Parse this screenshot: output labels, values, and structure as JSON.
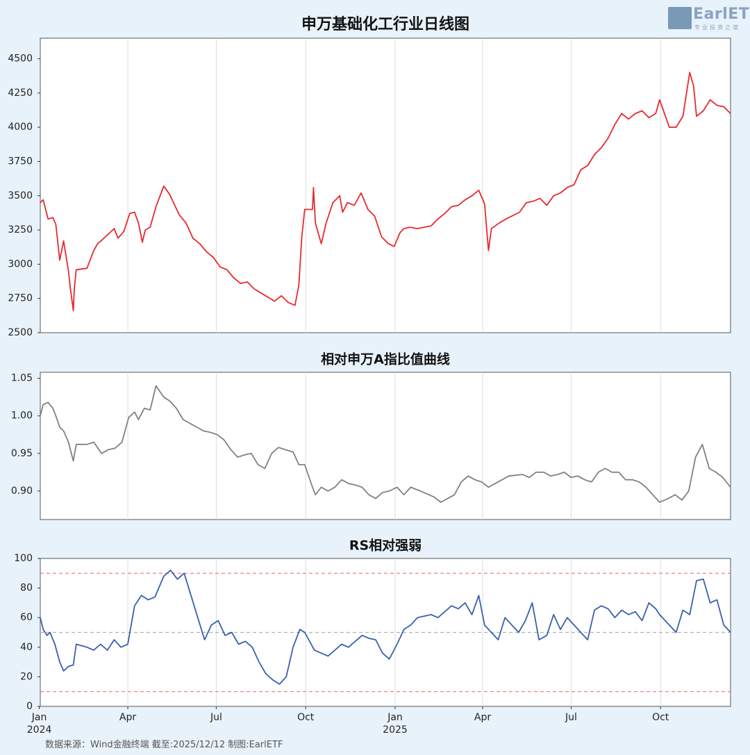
{
  "logo": {
    "text": "EarlETF",
    "sub": "专业投资之道"
  },
  "footer": "数据来源：Wind金融终端 截至:2025/12/12 制图:EarlETF",
  "chart_data": [
    {
      "type": "line",
      "title": "申万基础化工行业日线图",
      "ylim": [
        2500,
        4650
      ],
      "yticks": [
        2500,
        2750,
        3000,
        3250,
        3500,
        3750,
        4000,
        4250,
        4500
      ],
      "color": "#e8282d",
      "x_range": [
        "2024-01-02",
        "2025-12-12"
      ],
      "series": [
        {
          "x": [
            "2024-01-02",
            "2024-01-05",
            "2024-01-10",
            "2024-01-15",
            "2024-01-18",
            "2024-01-22",
            "2024-01-24",
            "2024-01-26",
            "2024-01-31",
            "2024-02-02",
            "2024-02-05",
            "2024-02-06",
            "2024-02-08",
            "2024-02-19",
            "2024-02-26",
            "2024-03-01",
            "2024-03-06",
            "2024-03-12",
            "2024-03-18",
            "2024-03-22",
            "2024-03-28",
            "2024-04-03",
            "2024-04-08",
            "2024-04-12",
            "2024-04-16",
            "2024-04-19",
            "2024-04-24",
            "2024-04-30",
            "2024-05-08",
            "2024-05-14",
            "2024-05-20",
            "2024-05-24",
            "2024-05-31",
            "2024-06-07",
            "2024-06-14",
            "2024-06-21",
            "2024-06-28",
            "2024-07-05",
            "2024-07-12",
            "2024-07-19",
            "2024-07-26",
            "2024-08-02",
            "2024-08-09",
            "2024-08-16",
            "2024-08-23",
            "2024-08-30",
            "2024-09-06",
            "2024-09-13",
            "2024-09-20",
            "2024-09-24",
            "2024-09-27",
            "2024-09-30",
            "2024-10-08",
            "2024-10-09",
            "2024-10-11",
            "2024-10-17",
            "2024-10-22",
            "2024-10-29",
            "2024-11-05",
            "2024-11-08",
            "2024-11-13",
            "2024-11-20",
            "2024-11-27",
            "2024-12-04",
            "2024-12-11",
            "2024-12-18",
            "2024-12-25",
            "2024-12-31",
            "2025-01-06",
            "2025-01-10",
            "2025-01-16",
            "2025-01-24",
            "2025-02-07",
            "2025-02-14",
            "2025-02-21",
            "2025-02-28",
            "2025-03-07",
            "2025-03-14",
            "2025-03-21",
            "2025-03-28",
            "2025-04-03",
            "2025-04-07",
            "2025-04-10",
            "2025-04-18",
            "2025-04-25",
            "2025-05-09",
            "2025-05-16",
            "2025-05-23",
            "2025-05-30",
            "2025-06-06",
            "2025-06-13",
            "2025-06-20",
            "2025-06-27",
            "2025-07-04",
            "2025-07-11",
            "2025-07-18",
            "2025-07-25",
            "2025-08-01",
            "2025-08-08",
            "2025-08-15",
            "2025-08-22",
            "2025-08-29",
            "2025-09-05",
            "2025-09-12",
            "2025-09-19",
            "2025-09-26",
            "2025-09-30",
            "2025-10-10",
            "2025-10-17",
            "2025-10-24",
            "2025-10-31",
            "2025-11-04",
            "2025-11-07",
            "2025-11-14",
            "2025-11-21",
            "2025-11-28",
            "2025-12-05",
            "2025-12-12"
          ],
          "values": [
            3450,
            3470,
            3330,
            3340,
            3290,
            3030,
            3100,
            3170,
            2950,
            2820,
            2660,
            2820,
            2960,
            2970,
            3100,
            3150,
            3180,
            3220,
            3260,
            3190,
            3240,
            3370,
            3380,
            3300,
            3160,
            3250,
            3270,
            3420,
            3570,
            3510,
            3420,
            3360,
            3300,
            3190,
            3150,
            3090,
            3050,
            2980,
            2960,
            2900,
            2860,
            2870,
            2820,
            2790,
            2760,
            2730,
            2770,
            2720,
            2700,
            2850,
            3200,
            3400,
            3400,
            3560,
            3300,
            3150,
            3300,
            3450,
            3500,
            3380,
            3450,
            3430,
            3520,
            3400,
            3350,
            3200,
            3150,
            3130,
            3230,
            3260,
            3270,
            3260,
            3280,
            3330,
            3370,
            3420,
            3430,
            3470,
            3500,
            3540,
            3440,
            3100,
            3260,
            3300,
            3330,
            3380,
            3450,
            3460,
            3480,
            3430,
            3500,
            3520,
            3560,
            3580,
            3690,
            3720,
            3800,
            3850,
            3920,
            4020,
            4100,
            4060,
            4100,
            4120,
            4070,
            4100,
            4200,
            4000,
            4000,
            4080,
            4400,
            4300,
            4080,
            4120,
            4200,
            4160,
            4150,
            4100
          ]
        }
      ]
    },
    {
      "type": "line",
      "title": "相对申万A指比值曲线",
      "ylim": [
        0.862,
        1.058
      ],
      "yticks": [
        0.9,
        0.95,
        1.0,
        1.05
      ],
      "color": "#808080",
      "x_range": [
        "2024-01-02",
        "2025-12-12"
      ],
      "series": [
        {
          "x": [
            "2024-01-02",
            "2024-01-05",
            "2024-01-10",
            "2024-01-15",
            "2024-01-18",
            "2024-01-22",
            "2024-01-26",
            "2024-01-31",
            "2024-02-05",
            "2024-02-08",
            "2024-02-19",
            "2024-02-26",
            "2024-03-05",
            "2024-03-12",
            "2024-03-19",
            "2024-03-26",
            "2024-04-02",
            "2024-04-08",
            "2024-04-12",
            "2024-04-18",
            "2024-04-24",
            "2024-04-30",
            "2024-05-08",
            "2024-05-14",
            "2024-05-21",
            "2024-05-28",
            "2024-06-04",
            "2024-06-11",
            "2024-06-18",
            "2024-06-25",
            "2024-07-02",
            "2024-07-09",
            "2024-07-16",
            "2024-07-23",
            "2024-07-30",
            "2024-08-06",
            "2024-08-13",
            "2024-08-20",
            "2024-08-27",
            "2024-09-03",
            "2024-09-10",
            "2024-09-18",
            "2024-09-24",
            "2024-09-30",
            "2024-10-08",
            "2024-10-11",
            "2024-10-17",
            "2024-10-24",
            "2024-10-31",
            "2024-11-07",
            "2024-11-14",
            "2024-11-21",
            "2024-11-28",
            "2024-12-05",
            "2024-12-12",
            "2024-12-19",
            "2024-12-26",
            "2025-01-03",
            "2025-01-10",
            "2025-01-17",
            "2025-01-27",
            "2025-02-10",
            "2025-02-17",
            "2025-02-24",
            "2025-03-03",
            "2025-03-10",
            "2025-03-17",
            "2025-03-24",
            "2025-03-31",
            "2025-04-07",
            "2025-04-14",
            "2025-04-21",
            "2025-04-28",
            "2025-05-12",
            "2025-05-19",
            "2025-05-26",
            "2025-06-03",
            "2025-06-10",
            "2025-06-17",
            "2025-06-24",
            "2025-07-01",
            "2025-07-08",
            "2025-07-15",
            "2025-07-22",
            "2025-07-29",
            "2025-08-05",
            "2025-08-12",
            "2025-08-19",
            "2025-08-26",
            "2025-09-02",
            "2025-09-09",
            "2025-09-16",
            "2025-09-23",
            "2025-09-30",
            "2025-10-09",
            "2025-10-16",
            "2025-10-23",
            "2025-10-30",
            "2025-11-06",
            "2025-11-13",
            "2025-11-20",
            "2025-11-27",
            "2025-12-04",
            "2025-12-12"
          ],
          "values": [
            1.0,
            1.015,
            1.018,
            1.01,
            1.0,
            0.985,
            0.98,
            0.965,
            0.94,
            0.962,
            0.962,
            0.965,
            0.95,
            0.955,
            0.957,
            0.965,
            0.998,
            1.005,
            0.995,
            1.01,
            1.008,
            1.04,
            1.025,
            1.02,
            1.01,
            0.995,
            0.99,
            0.985,
            0.98,
            0.978,
            0.975,
            0.968,
            0.955,
            0.945,
            0.948,
            0.95,
            0.935,
            0.93,
            0.95,
            0.958,
            0.955,
            0.952,
            0.935,
            0.935,
            0.905,
            0.895,
            0.905,
            0.9,
            0.905,
            0.915,
            0.91,
            0.908,
            0.905,
            0.895,
            0.89,
            0.898,
            0.9,
            0.905,
            0.895,
            0.905,
            0.9,
            0.892,
            0.885,
            0.89,
            0.895,
            0.912,
            0.92,
            0.915,
            0.912,
            0.905,
            0.91,
            0.915,
            0.92,
            0.922,
            0.918,
            0.925,
            0.925,
            0.92,
            0.922,
            0.925,
            0.918,
            0.92,
            0.915,
            0.912,
            0.925,
            0.93,
            0.925,
            0.925,
            0.915,
            0.915,
            0.912,
            0.905,
            0.895,
            0.885,
            0.89,
            0.895,
            0.888,
            0.9,
            0.945,
            0.962,
            0.93,
            0.925,
            0.918,
            0.905
          ]
        }
      ]
    },
    {
      "type": "line",
      "title": "RS相对强弱",
      "ylim": [
        0,
        100
      ],
      "yticks": [
        0,
        20,
        40,
        60,
        80,
        100
      ],
      "color": "#3a5fae",
      "hlines": [
        {
          "y": 90,
          "color": "#f07070"
        },
        {
          "y": 50,
          "color": "#b0b0b0"
        },
        {
          "y": 10,
          "color": "#f07070"
        }
      ],
      "x_range": [
        "2024-01-02",
        "2025-12-12"
      ],
      "xticks": [
        {
          "date": "2024-01-01",
          "label": "Jan",
          "sub": "2024"
        },
        {
          "date": "2024-04-01",
          "label": "Apr"
        },
        {
          "date": "2024-07-01",
          "label": "Jul"
        },
        {
          "date": "2024-10-01",
          "label": "Oct"
        },
        {
          "date": "2025-01-01",
          "label": "Jan",
          "sub": "2025"
        },
        {
          "date": "2025-04-01",
          "label": "Apr"
        },
        {
          "date": "2025-07-01",
          "label": "Jul"
        },
        {
          "date": "2025-10-01",
          "label": "Oct"
        }
      ],
      "series": [
        {
          "x": [
            "2024-01-02",
            "2024-01-05",
            "2024-01-09",
            "2024-01-12",
            "2024-01-17",
            "2024-01-22",
            "2024-01-26",
            "2024-01-31",
            "2024-02-05",
            "2024-02-08",
            "2024-02-19",
            "2024-02-26",
            "2024-03-04",
            "2024-03-11",
            "2024-03-18",
            "2024-03-25",
            "2024-04-01",
            "2024-04-08",
            "2024-04-15",
            "2024-04-22",
            "2024-04-29",
            "2024-05-08",
            "2024-05-15",
            "2024-05-22",
            "2024-05-29",
            "2024-06-05",
            "2024-06-12",
            "2024-06-19",
            "2024-06-26",
            "2024-07-03",
            "2024-07-10",
            "2024-07-17",
            "2024-07-24",
            "2024-07-31",
            "2024-08-07",
            "2024-08-14",
            "2024-08-21",
            "2024-08-28",
            "2024-09-04",
            "2024-09-11",
            "2024-09-18",
            "2024-09-25",
            "2024-09-30",
            "2024-10-10",
            "2024-10-17",
            "2024-10-24",
            "2024-10-31",
            "2024-11-07",
            "2024-11-14",
            "2024-11-21",
            "2024-11-28",
            "2024-12-05",
            "2024-12-12",
            "2024-12-19",
            "2024-12-26",
            "2025-01-03",
            "2025-01-10",
            "2025-01-17",
            "2025-01-24",
            "2025-02-07",
            "2025-02-14",
            "2025-02-21",
            "2025-02-28",
            "2025-03-07",
            "2025-03-14",
            "2025-03-21",
            "2025-03-28",
            "2025-04-03",
            "2025-04-10",
            "2025-04-17",
            "2025-04-24",
            "2025-05-08",
            "2025-05-15",
            "2025-05-22",
            "2025-05-29",
            "2025-06-06",
            "2025-06-13",
            "2025-06-20",
            "2025-06-27",
            "2025-07-04",
            "2025-07-11",
            "2025-07-18",
            "2025-07-25",
            "2025-08-01",
            "2025-08-08",
            "2025-08-15",
            "2025-08-22",
            "2025-08-29",
            "2025-09-05",
            "2025-09-12",
            "2025-09-19",
            "2025-09-26",
            "2025-09-30",
            "2025-10-10",
            "2025-10-17",
            "2025-10-24",
            "2025-10-31",
            "2025-11-07",
            "2025-11-14",
            "2025-11-21",
            "2025-11-28",
            "2025-12-05",
            "2025-12-12"
          ],
          "values": [
            60,
            52,
            48,
            50,
            42,
            30,
            24,
            27,
            28,
            42,
            40,
            38,
            42,
            38,
            45,
            40,
            42,
            68,
            75,
            72,
            74,
            88,
            92,
            86,
            90,
            75,
            60,
            45,
            55,
            58,
            48,
            50,
            42,
            44,
            40,
            30,
            22,
            18,
            15,
            20,
            40,
            52,
            50,
            38,
            36,
            34,
            38,
            42,
            40,
            44,
            48,
            46,
            45,
            36,
            32,
            42,
            52,
            55,
            60,
            62,
            60,
            64,
            68,
            66,
            70,
            62,
            75,
            55,
            50,
            45,
            60,
            50,
            58,
            70,
            45,
            48,
            62,
            52,
            60,
            55,
            50,
            45,
            65,
            68,
            66,
            60,
            65,
            62,
            64,
            58,
            70,
            66,
            62,
            55,
            50,
            65,
            62,
            85,
            86,
            70,
            72,
            55,
            50
          ]
        }
      ]
    }
  ]
}
